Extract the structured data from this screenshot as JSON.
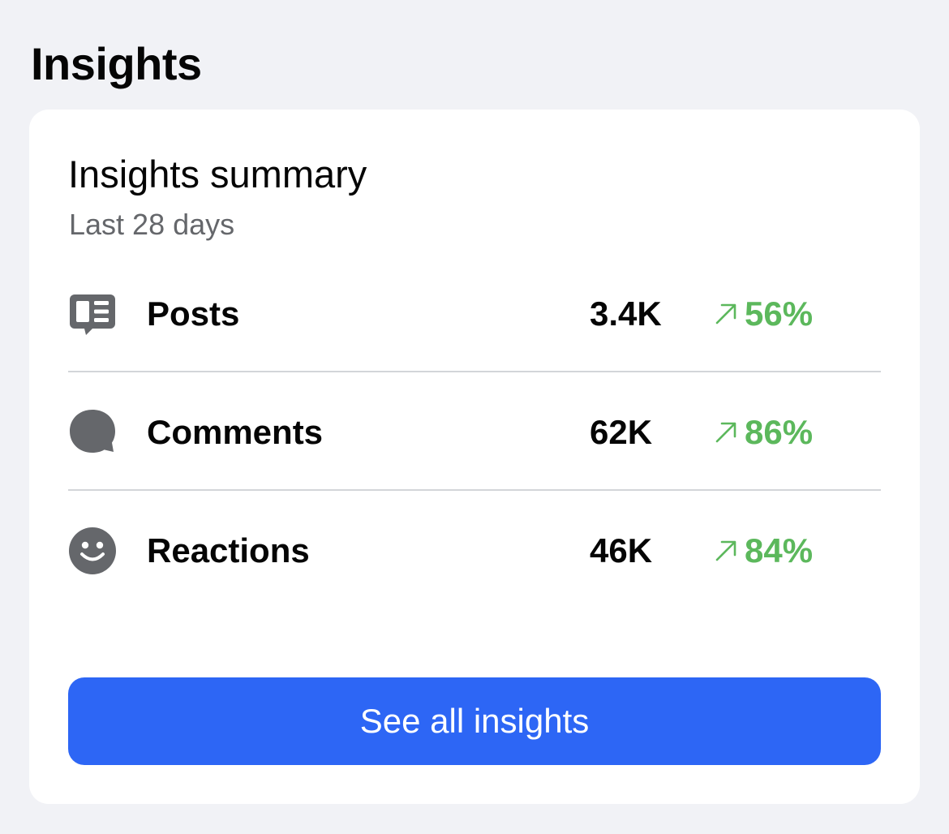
{
  "section": {
    "title": "Insights"
  },
  "card": {
    "title": "Insights summary",
    "subtitle": "Last 28 days"
  },
  "metrics": [
    {
      "label": "Posts",
      "value": "3.4K",
      "change": "56%",
      "icon": "posts-icon",
      "trend": "up"
    },
    {
      "label": "Comments",
      "value": "62K",
      "change": "86%",
      "icon": "comment-bubble-icon",
      "trend": "up"
    },
    {
      "label": "Reactions",
      "value": "46K",
      "change": "84%",
      "icon": "smiley-face-icon",
      "trend": "up"
    }
  ],
  "button": {
    "label": "See all insights"
  },
  "colors": {
    "background": "#f1f2f6",
    "card": "#ffffff",
    "accent": "#2d66f5",
    "positive": "#5cb85c",
    "icon": "#65676b",
    "text": "#050505",
    "secondary_text": "#65676b"
  }
}
